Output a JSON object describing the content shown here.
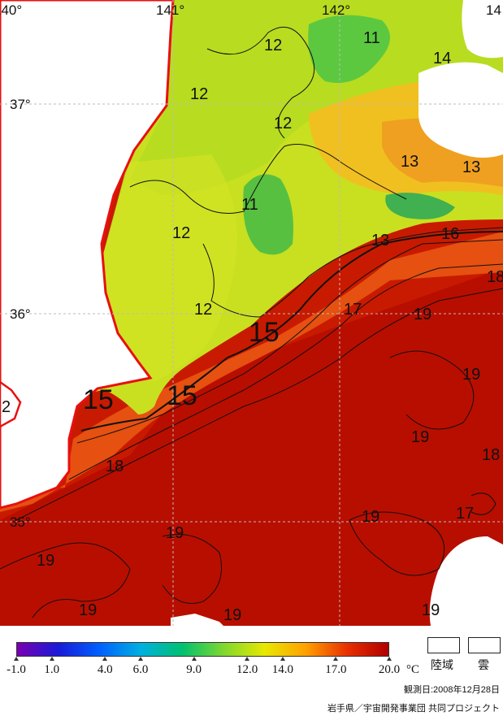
{
  "map": {
    "lon_labels": [
      "140°",
      "141°",
      "142°",
      "14"
    ],
    "lat_labels": [
      "37°",
      "36°",
      "35°"
    ],
    "contour_labels": [
      {
        "text": "12",
        "size": "normal"
      },
      {
        "text": "11",
        "size": "normal"
      },
      {
        "text": "14",
        "size": "normal"
      },
      {
        "text": "12",
        "size": "normal"
      },
      {
        "text": "12",
        "size": "normal"
      },
      {
        "text": "13",
        "size": "normal"
      },
      {
        "text": "13",
        "size": "normal"
      },
      {
        "text": "11",
        "size": "normal"
      },
      {
        "text": "12",
        "size": "normal"
      },
      {
        "text": "13",
        "size": "normal"
      },
      {
        "text": "16",
        "size": "normal"
      },
      {
        "text": "18",
        "size": "normal"
      },
      {
        "text": "12",
        "size": "normal"
      },
      {
        "text": "17",
        "size": "normal"
      },
      {
        "text": "19",
        "size": "normal"
      },
      {
        "text": "15",
        "size": "large"
      },
      {
        "text": "19",
        "size": "normal"
      },
      {
        "text": "15",
        "size": "large"
      },
      {
        "text": "15",
        "size": "large"
      },
      {
        "text": "2",
        "size": "normal"
      },
      {
        "text": "19",
        "size": "normal"
      },
      {
        "text": "18",
        "size": "normal"
      },
      {
        "text": "18",
        "size": "normal"
      },
      {
        "text": "19",
        "size": "normal"
      },
      {
        "text": "17",
        "size": "normal"
      },
      {
        "text": "19",
        "size": "normal"
      },
      {
        "text": "19",
        "size": "normal"
      },
      {
        "text": "19",
        "size": "normal"
      },
      {
        "text": "19",
        "size": "normal"
      },
      {
        "text": "19",
        "size": "normal"
      }
    ]
  },
  "legend": {
    "ticks": [
      "-1.0",
      "1.0",
      "4.0",
      "6.0",
      "9.0",
      "12.0",
      "14.0",
      "17.0",
      "20.0"
    ],
    "tick_values": [
      -1.0,
      1.0,
      4.0,
      6.0,
      9.0,
      12.0,
      14.0,
      17.0,
      20.0
    ],
    "range": [
      -1.0,
      20.0
    ],
    "unit": "°C",
    "land_label": "陸域",
    "cloud_label": "雲",
    "colors": [
      "#7a00b0",
      "#1a1ad8",
      "#0060ff",
      "#00b0e0",
      "#00c070",
      "#7ed830",
      "#e8e800",
      "#ffa000",
      "#e83000",
      "#b00000"
    ]
  },
  "observation_date": "観測日:2008年12月28日",
  "credit": "岩手県／宇宙開発事業団 共同プロジェクト"
}
